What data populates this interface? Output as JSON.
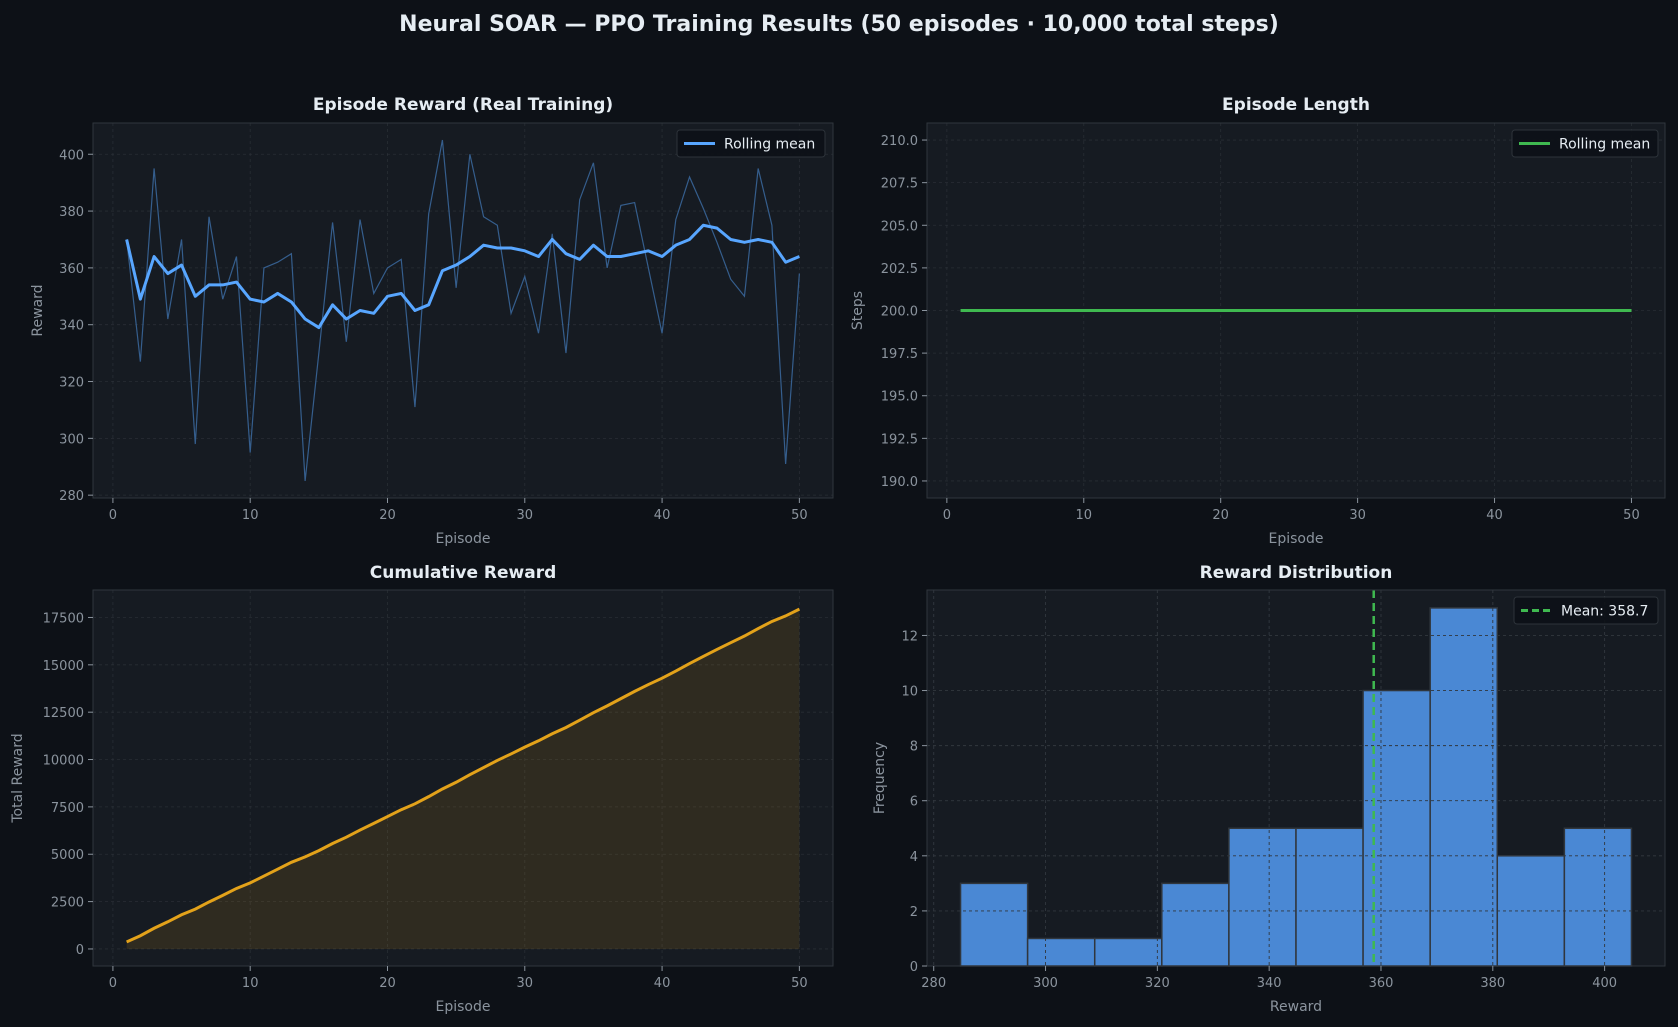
{
  "title": "Neural SOAR — PPO Training Results  (50 episodes · 10,000 total steps)",
  "colors": {
    "background": "#0d1117",
    "axes_background": "#161b22",
    "grid": "#30363d",
    "reward_raw": "#3b6aa0",
    "reward_rolling": "#58a6ff",
    "length": "#3fb950",
    "cumulative": "#e3a21a",
    "histogram": "#4a88d4",
    "mean_line": "#3fb950"
  },
  "chart_data": [
    {
      "type": "line",
      "title": "Episode Reward (Real Training)",
      "xlabel": "Episode",
      "ylabel": "Reward",
      "xlim": [
        -1.45,
        52.45
      ],
      "ylim": [
        279,
        411
      ],
      "xticks": [
        0,
        10,
        20,
        30,
        40,
        50
      ],
      "yticks": [
        280,
        300,
        320,
        340,
        360,
        380,
        400
      ],
      "grid": true,
      "legend": "top-right",
      "x": [
        1,
        2,
        3,
        4,
        5,
        6,
        7,
        8,
        9,
        10,
        11,
        12,
        13,
        14,
        15,
        16,
        17,
        18,
        19,
        20,
        21,
        22,
        23,
        24,
        25,
        26,
        27,
        28,
        29,
        30,
        31,
        32,
        33,
        34,
        35,
        36,
        37,
        38,
        39,
        40,
        41,
        42,
        43,
        44,
        45,
        46,
        47,
        48,
        49,
        50
      ],
      "series": [
        {
          "values": [
            370,
            327,
            395,
            342,
            370,
            298,
            378,
            349,
            364,
            295,
            360,
            362,
            365,
            285,
            330,
            376,
            334,
            377,
            351,
            360,
            363,
            311,
            379,
            405,
            353,
            400,
            378,
            375,
            344,
            357,
            337,
            372,
            330,
            384,
            397,
            360,
            382,
            383,
            360,
            337,
            377,
            392,
            381,
            369,
            356,
            350,
            395,
            375,
            291,
            358
          ]
        },
        {
          "name": "Rolling mean",
          "values": [
            370,
            349,
            364,
            358,
            361,
            350,
            354,
            354,
            355,
            349,
            348,
            351,
            348,
            342,
            339,
            347,
            342,
            345,
            344,
            350,
            351,
            345,
            347,
            359,
            361,
            364,
            368,
            367,
            367,
            366,
            364,
            370,
            365,
            363,
            368,
            364,
            364,
            365,
            366,
            364,
            368,
            370,
            375,
            374,
            370,
            369,
            370,
            369,
            362,
            364
          ]
        }
      ]
    },
    {
      "type": "line",
      "title": "Episode Length",
      "xlabel": "Episode",
      "ylabel": "Steps",
      "xlim": [
        -1.45,
        52.45
      ],
      "ylim": [
        189,
        211
      ],
      "xticks": [
        0,
        10,
        20,
        30,
        40,
        50
      ],
      "yticks": [
        "190.0",
        "192.5",
        "195.0",
        "197.5",
        "200.0",
        "202.5",
        "205.0",
        "207.5",
        "210.0"
      ],
      "grid": true,
      "legend": "top-right",
      "x": [
        1,
        50
      ],
      "series": [
        {
          "name": "Rolling mean",
          "values": [
            200,
            200
          ]
        }
      ]
    },
    {
      "type": "area",
      "title": "Cumulative Reward",
      "xlabel": "Episode",
      "ylabel": "Total Reward",
      "xlim": [
        -1.45,
        52.45
      ],
      "ylim": [
        -900,
        18950
      ],
      "xticks": [
        0,
        10,
        20,
        30,
        40,
        50
      ],
      "yticks": [
        0,
        2500,
        5000,
        7500,
        10000,
        12500,
        15000,
        17500
      ],
      "grid": true,
      "x": [
        1,
        2,
        3,
        4,
        5,
        6,
        7,
        8,
        9,
        10,
        11,
        12,
        13,
        14,
        15,
        16,
        17,
        18,
        19,
        20,
        21,
        22,
        23,
        24,
        25,
        26,
        27,
        28,
        29,
        30,
        31,
        32,
        33,
        34,
        35,
        36,
        37,
        38,
        39,
        40,
        41,
        42,
        43,
        44,
        45,
        46,
        47,
        48,
        49,
        50
      ],
      "values": [
        370,
        697,
        1092,
        1434,
        1804,
        2102,
        2480,
        2829,
        3193,
        3488,
        3848,
        4210,
        4575,
        4860,
        5190,
        5566,
        5900,
        6277,
        6628,
        6988,
        7351,
        7662,
        8041,
        8446,
        8799,
        9199,
        9577,
        9952,
        10296,
        10653,
        10990,
        11362,
        11692,
        12076,
        12473,
        12833,
        13215,
        13598,
        13958,
        14295,
        14672,
        15064,
        15445,
        15814,
        16170,
        16520,
        16915,
        17290,
        17581,
        17939
      ]
    },
    {
      "type": "bar",
      "title": "Reward Distribution",
      "xlabel": "Reward",
      "ylabel": "Frequency",
      "xlim": [
        278.8,
        410.8
      ],
      "ylim": [
        0,
        13.65
      ],
      "xticks": [
        280,
        300,
        320,
        340,
        360,
        380,
        400
      ],
      "yticks": [
        0,
        2,
        4,
        6,
        8,
        10,
        12
      ],
      "grid": true,
      "legend": "top-right",
      "bin_edges": [
        284.8,
        296.8,
        308.8,
        320.8,
        332.8,
        344.8,
        356.8,
        368.8,
        380.8,
        392.8,
        404.8
      ],
      "values": [
        3,
        1,
        1,
        3,
        5,
        5,
        10,
        13,
        4,
        5
      ],
      "mean": 358.7,
      "mean_label": "Mean: 358.7"
    }
  ]
}
